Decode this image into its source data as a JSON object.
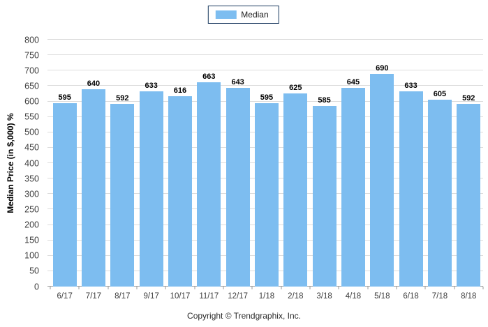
{
  "legend": {
    "label": "Median",
    "swatch_color": "#7DBDF0",
    "border_color": "#17375E"
  },
  "footer": {
    "copyright": "Copyright © Trendgraphix, Inc."
  },
  "chart_data": {
    "type": "bar",
    "title": "",
    "xlabel": "",
    "ylabel": "Median Price (in $,000) %",
    "categories": [
      "6/17",
      "7/17",
      "8/17",
      "9/17",
      "10/17",
      "11/17",
      "12/17",
      "1/18",
      "2/18",
      "3/18",
      "4/18",
      "5/18",
      "6/18",
      "7/18",
      "8/18"
    ],
    "series": [
      {
        "name": "Median",
        "values": [
          595,
          640,
          592,
          633,
          616,
          663,
          643,
          595,
          625,
          585,
          645,
          690,
          633,
          605,
          592
        ]
      }
    ],
    "ylim": [
      0,
      800
    ],
    "ytick_step": 50,
    "bar_color": "#7DBDF0",
    "grid": true,
    "gridline_color": "#DCDCDC",
    "legend_position": "top-center"
  }
}
